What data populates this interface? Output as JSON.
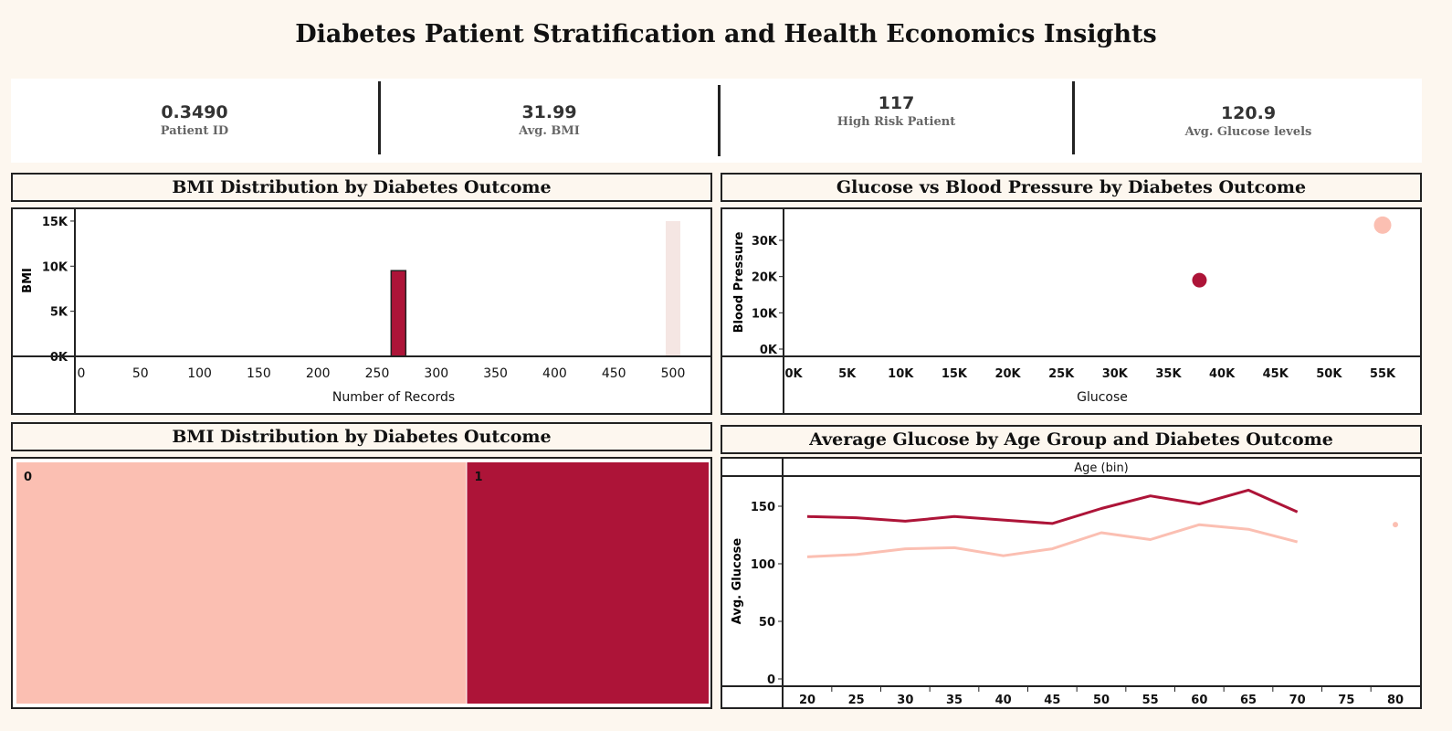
{
  "dashboard": {
    "title": "Diabetes Patient Stratification and Health Economics Insights"
  },
  "kpis": [
    {
      "value": "0.3490",
      "label": "Patient ID"
    },
    {
      "value": "31.99",
      "label": "Avg. BMI"
    },
    {
      "value": "117",
      "label": "High Risk Patient"
    },
    {
      "value": "120.9",
      "label": "Avg. Glucose levels"
    }
  ],
  "colors": {
    "outcome_0": "#fbbfb2",
    "outcome_1": "#ad1438",
    "faint": "#f5e6e3"
  },
  "chart_data": [
    {
      "type": "bar",
      "title": "BMI Distribution by Diabetes Outcome",
      "xlabel": "Number of Records",
      "ylabel": "BMI",
      "xlim": [
        0,
        530
      ],
      "ylim": [
        0,
        15500
      ],
      "xticks": [
        0,
        50,
        100,
        150,
        200,
        250,
        300,
        350,
        400,
        450,
        500
      ],
      "xtick_labels": [
        "0",
        "50",
        "100",
        "150",
        "200",
        "250",
        "300",
        "350",
        "400",
        "450",
        "500"
      ],
      "yticks": [
        0,
        5000,
        10000,
        15000
      ],
      "ytick_labels": [
        "0K",
        "5K",
        "10K",
        "15K"
      ],
      "series": [
        {
          "outcome": "1",
          "records": 268,
          "value": 9500
        },
        {
          "outcome": "0",
          "records": 500,
          "value": 15000
        }
      ]
    },
    {
      "type": "scatter",
      "title": "Glucose vs Blood Pressure by Diabetes Outcome",
      "xlabel": "Glucose",
      "ylabel": "Blood Pressure",
      "xlim": [
        0,
        57500
      ],
      "ylim": [
        0,
        35500
      ],
      "xticks": [
        0,
        5000,
        10000,
        15000,
        20000,
        25000,
        30000,
        35000,
        40000,
        45000,
        50000,
        55000
      ],
      "xtick_labels": [
        "0K",
        "5K",
        "10K",
        "15K",
        "20K",
        "25K",
        "30K",
        "35K",
        "40K",
        "45K",
        "50K",
        "55K"
      ],
      "yticks": [
        0,
        10000,
        20000,
        30000
      ],
      "ytick_labels": [
        "0K",
        "10K",
        "20K",
        "30K"
      ],
      "points": [
        {
          "outcome": "1",
          "x": 37900,
          "y": 19000
        },
        {
          "outcome": "0",
          "x": 55000,
          "y": 34200
        }
      ]
    },
    {
      "type": "heatmap",
      "title": "BMI Distribution by Diabetes Outcome",
      "cells": [
        {
          "label": "0",
          "share": 0.651
        },
        {
          "label": "1",
          "share": 0.349
        }
      ]
    },
    {
      "type": "line",
      "title": "Average Glucose by Age Group and Diabetes Outcome",
      "header": "Age (bin)",
      "xlabel": "",
      "ylabel": "Avg. Glucose",
      "x": [
        20,
        25,
        30,
        35,
        40,
        45,
        50,
        55,
        60,
        65,
        70,
        75,
        80
      ],
      "xtick_labels": [
        "20",
        "25",
        "30",
        "35",
        "40",
        "45",
        "50",
        "55",
        "60",
        "65",
        "70",
        "75",
        "80"
      ],
      "ylim": [
        0,
        175
      ],
      "yticks": [
        0,
        50,
        100,
        150
      ],
      "ytick_labels": [
        "0",
        "50",
        "100",
        "150"
      ],
      "series": [
        {
          "outcome": "1",
          "x": [
            20,
            25,
            30,
            35,
            40,
            45,
            50,
            55,
            60,
            65,
            70
          ],
          "values": [
            141,
            140,
            137,
            141,
            138,
            135,
            148,
            159,
            152,
            164,
            145
          ]
        },
        {
          "outcome": "0",
          "x": [
            20,
            25,
            30,
            35,
            40,
            45,
            50,
            55,
            60,
            65,
            70
          ],
          "values": [
            106,
            108,
            113,
            114,
            107,
            113,
            127,
            121,
            134,
            130,
            119
          ]
        },
        {
          "outcome": "0",
          "x": [
            80
          ],
          "values": [
            134
          ]
        }
      ]
    }
  ]
}
